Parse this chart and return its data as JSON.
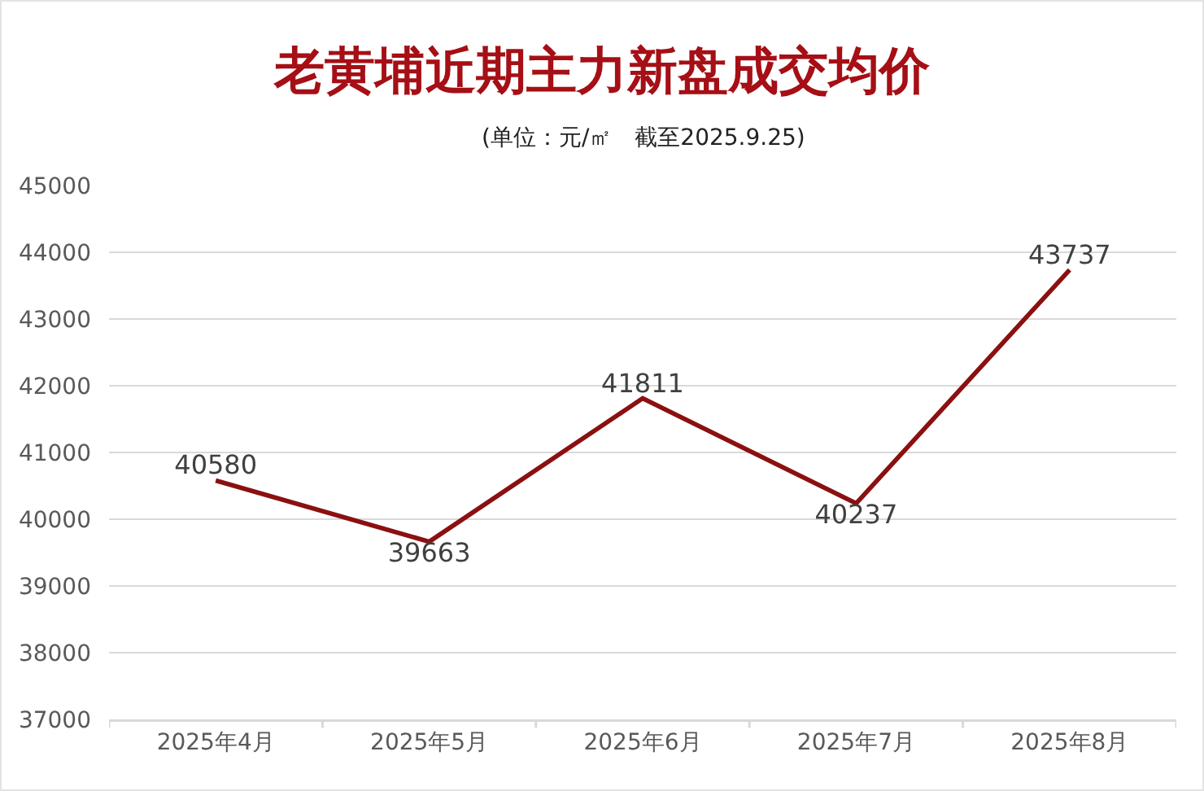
{
  "chart_data": {
    "type": "line",
    "title": "老黄埔近期主力新盘成交均价",
    "subtitle": "(单位：元/㎡　截至2025.9.25)",
    "categories": [
      "2025年4月",
      "2025年5月",
      "2025年6月",
      "2025年7月",
      "2025年8月"
    ],
    "values": [
      40580,
      39663,
      41811,
      40237,
      43737
    ],
    "color": "#8b1010",
    "ylim": [
      37000,
      45000
    ],
    "yticks": [
      37000,
      38000,
      39000,
      40000,
      41000,
      42000,
      43000,
      44000,
      45000
    ],
    "grid": "y",
    "marker": "none",
    "line_style": "solid",
    "data_labels": true
  }
}
